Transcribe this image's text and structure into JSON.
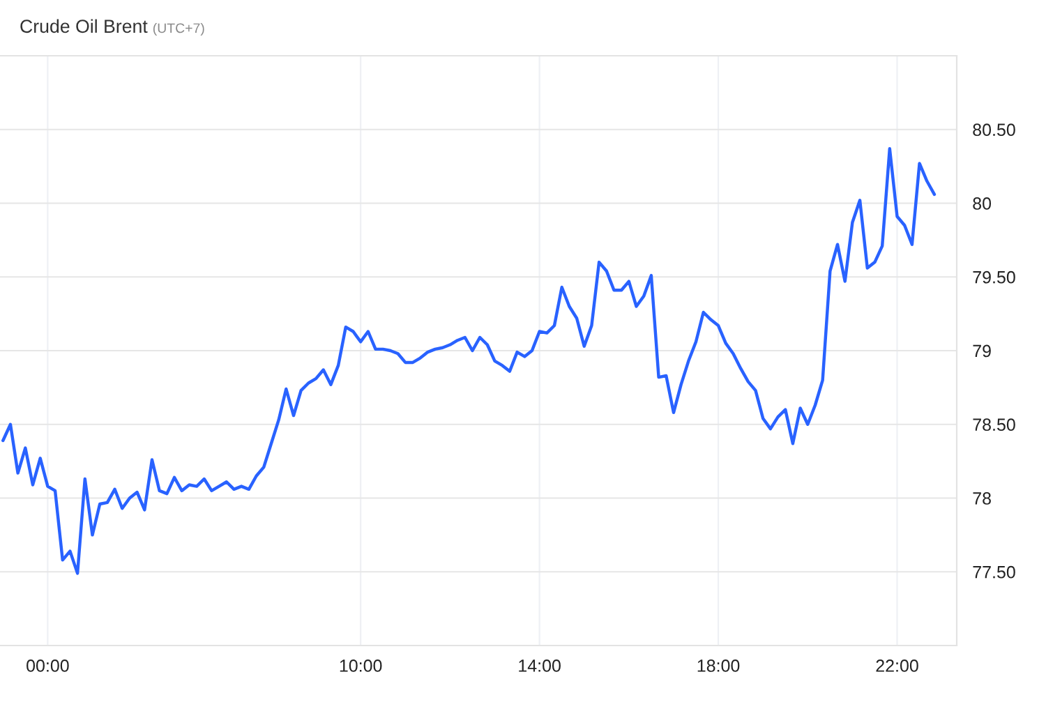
{
  "chart_data": {
    "type": "line",
    "title": "Crude Oil Brent",
    "subtitle": "(UTC+7)",
    "categories": [
      null,
      null,
      null,
      null,
      null,
      null,
      "00:00",
      null,
      null,
      null,
      null,
      null,
      null,
      null,
      null,
      null,
      null,
      null,
      null,
      null,
      null,
      null,
      null,
      null,
      null,
      null,
      null,
      null,
      null,
      null,
      null,
      null,
      null,
      null,
      null,
      null,
      null,
      null,
      null,
      null,
      null,
      null,
      null,
      null,
      null,
      null,
      null,
      null,
      "10:00",
      null,
      null,
      null,
      null,
      null,
      null,
      null,
      null,
      null,
      null,
      null,
      null,
      null,
      null,
      null,
      null,
      null,
      null,
      null,
      null,
      null,
      null,
      null,
      "14:00",
      null,
      null,
      null,
      null,
      null,
      null,
      null,
      null,
      null,
      null,
      null,
      null,
      null,
      null,
      null,
      null,
      null,
      null,
      null,
      null,
      null,
      null,
      null,
      "18:00",
      null,
      null,
      null,
      null,
      null,
      null,
      null,
      null,
      null,
      null,
      null,
      null,
      null,
      null,
      null,
      null,
      null,
      null,
      null,
      null,
      null,
      null,
      null,
      "22:00",
      null,
      null,
      null,
      null,
      null
    ],
    "series": [
      {
        "color": "#2962ff",
        "values": [
          78.39,
          78.5,
          78.17,
          78.34,
          78.09,
          78.27,
          78.08,
          78.05,
          77.58,
          77.64,
          77.49,
          78.13,
          77.75,
          77.96,
          77.97,
          78.06,
          77.93,
          78.0,
          78.04,
          77.92,
          78.26,
          78.05,
          78.03,
          78.14,
          78.05,
          78.09,
          78.08,
          78.13,
          78.05,
          78.08,
          78.11,
          78.06,
          78.08,
          78.06,
          78.15,
          78.21,
          78.37,
          78.53,
          78.74,
          78.56,
          78.73,
          78.78,
          78.81,
          78.87,
          78.77,
          78.9,
          79.16,
          79.13,
          79.06,
          79.13,
          79.01,
          79.01,
          79.0,
          78.98,
          78.92,
          78.92,
          78.95,
          78.99,
          79.01,
          79.02,
          79.04,
          79.07,
          79.09,
          79.0,
          79.09,
          79.04,
          78.93,
          78.9,
          78.86,
          78.99,
          78.96,
          79.0,
          79.13,
          79.12,
          79.17,
          79.43,
          79.3,
          79.22,
          79.03,
          79.17,
          79.6,
          79.54,
          79.41,
          79.41,
          79.47,
          79.3,
          79.37,
          79.51,
          78.82,
          78.83,
          78.58,
          78.77,
          78.93,
          79.06,
          79.26,
          79.21,
          79.17,
          79.05,
          78.98,
          78.88,
          78.79,
          78.73,
          78.54,
          78.47,
          78.55,
          78.6,
          78.37,
          78.61,
          78.5,
          78.63,
          78.8,
          79.54,
          79.72,
          79.47,
          79.87,
          80.02,
          79.56,
          79.6,
          79.71,
          80.37,
          79.91,
          79.85,
          79.72,
          80.27,
          80.15,
          80.06
        ]
      }
    ],
    "ylim": [
      77,
      81
    ],
    "yticks": [
      {
        "value": 77.5,
        "label": "77.50"
      },
      78,
      {
        "value": 78.5,
        "label": "78.50"
      },
      79,
      {
        "value": 79.5,
        "label": "79.50"
      },
      80,
      {
        "value": 80.5,
        "label": "80.50"
      }
    ],
    "grid": true,
    "line_style": "solid"
  }
}
